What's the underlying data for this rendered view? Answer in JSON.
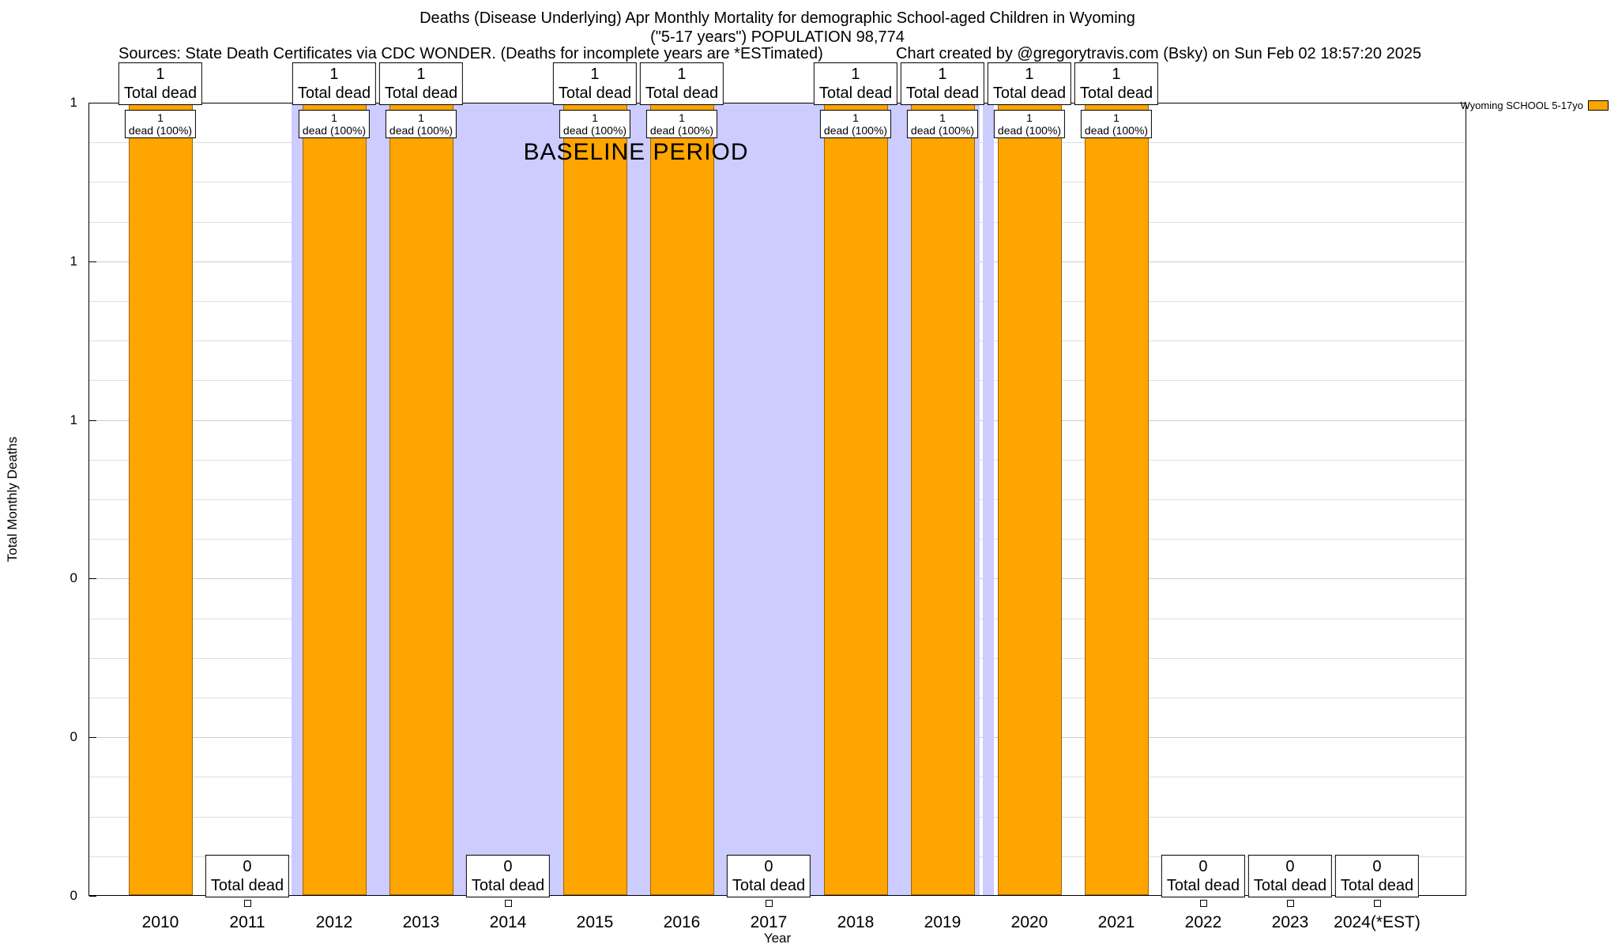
{
  "header": {
    "title_line1": "Deaths (Disease Underlying) Apr Monthly Mortality for demographic School-aged Children in Wyoming",
    "title_line2": "(\"5-17 years\") POPULATION 98,774",
    "sources": "Sources: State Death Certificates via CDC WONDER. (Deaths for incomplete years are *ESTimated)",
    "credit": "Chart created by @gregorytravis.com (Bsky) on Sun Feb 02 18:57:20 2025"
  },
  "legend": {
    "label": "Wyoming SCHOOL 5-17yo",
    "color": "#ffa500"
  },
  "chart_data": {
    "type": "bar",
    "title": "Deaths (Disease Underlying) Apr Monthly Mortality for demographic School-aged Children in Wyoming (\"5-17 years\") POPULATION 98,774",
    "xlabel": "Year",
    "ylabel": "Total Monthly Deaths",
    "ylim": [
      0,
      1
    ],
    "grid": true,
    "legend_position": "top-right",
    "yticks": [
      0,
      0.2,
      0.4,
      0.6,
      0.8,
      1
    ],
    "ytick_labels": [
      "0",
      "0",
      "0",
      "1",
      "1",
      "1"
    ],
    "categories": [
      "2010",
      "2011",
      "2012",
      "2013",
      "2014",
      "2015",
      "2016",
      "2017",
      "2018",
      "2019",
      "2020",
      "2021",
      "2022",
      "2023",
      "2024(*EST)"
    ],
    "series": [
      {
        "name": "Wyoming SCHOOL 5-17yo",
        "color": "#ffa500",
        "values": [
          1,
          0,
          1,
          1,
          0,
          1,
          1,
          0,
          1,
          1,
          1,
          1,
          0,
          0,
          0
        ]
      }
    ],
    "annotations": {
      "total_label": "Total dead",
      "inner_label": "dead (100%)"
    },
    "baseline": {
      "label": "BASELINE PERIOD",
      "color": "#ccccff",
      "from_year": "2012",
      "to_year": "2019"
    }
  }
}
